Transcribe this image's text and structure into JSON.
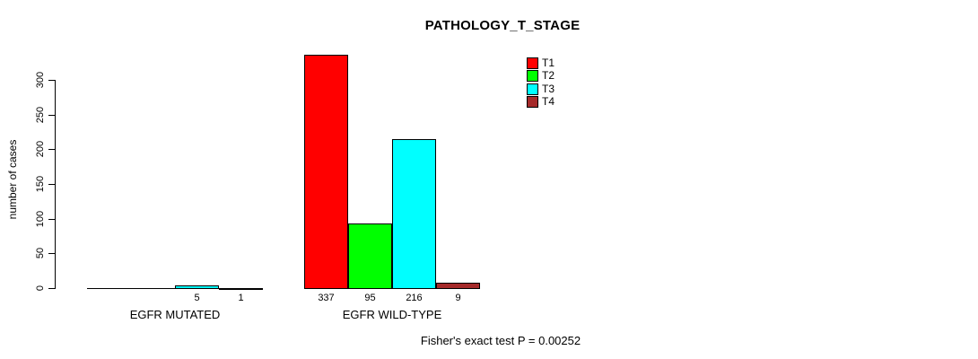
{
  "chart_data": {
    "type": "bar",
    "title": "PATHOLOGY_T_STAGE",
    "xlabel": "",
    "ylabel": "number of cases",
    "ylim": [
      0,
      300
    ],
    "yticks": [
      0,
      50,
      100,
      150,
      200,
      250,
      300
    ],
    "grid": false,
    "legend_position": "top-right",
    "categories": [
      "EGFR MUTATED",
      "EGFR WILD-TYPE"
    ],
    "series": [
      {
        "name": "T1",
        "color": "#FF0000",
        "values": [
          0,
          337
        ]
      },
      {
        "name": "T2",
        "color": "#00FF00",
        "values": [
          0,
          95
        ]
      },
      {
        "name": "T3",
        "color": "#00FFFF",
        "values": [
          5,
          216
        ]
      },
      {
        "name": "T4",
        "color": "#A52A2A",
        "values": [
          1,
          9
        ]
      }
    ],
    "bar_labels": [
      [
        "",
        "",
        "5",
        "1"
      ],
      [
        "337",
        "95",
        "216",
        "9"
      ]
    ],
    "annotation": "Fisher's exact test P = 0.00252"
  }
}
